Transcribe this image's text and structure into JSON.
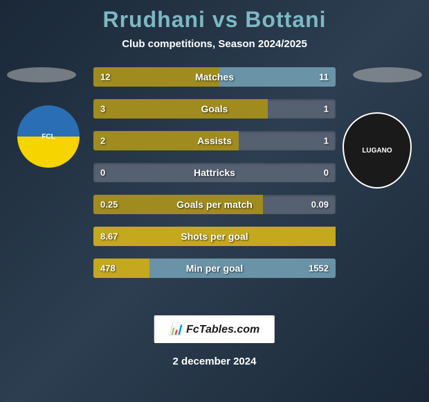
{
  "header": {
    "title": "Rrudhani vs Bottani",
    "subtitle": "Club competitions, Season 2024/2025"
  },
  "colors": {
    "title_color": "#7eb8c4",
    "text_color": "#ffffff",
    "bar_bg": "#556070",
    "fill_olive": "#a08c1e",
    "fill_yellow": "#c4a81e",
    "fill_lightblue": "#6b93a8"
  },
  "teams": {
    "left": {
      "name": "FCL",
      "badge_label": "FCL"
    },
    "right": {
      "name": "FC Lugano",
      "badge_label": "LUGANO"
    }
  },
  "stats": [
    {
      "label": "Matches",
      "left_value": "12",
      "right_value": "11",
      "left_pct": 52,
      "right_pct": 48,
      "left_color": "#a08c1e",
      "right_color": "#6b93a8"
    },
    {
      "label": "Goals",
      "left_value": "3",
      "right_value": "1",
      "left_pct": 72,
      "right_pct": 0,
      "left_color": "#a08c1e",
      "right_color": "#556070"
    },
    {
      "label": "Assists",
      "left_value": "2",
      "right_value": "1",
      "left_pct": 60,
      "right_pct": 0,
      "left_color": "#a08c1e",
      "right_color": "#556070"
    },
    {
      "label": "Hattricks",
      "left_value": "0",
      "right_value": "0",
      "left_pct": 0,
      "right_pct": 0,
      "left_color": "#556070",
      "right_color": "#556070"
    },
    {
      "label": "Goals per match",
      "left_value": "0.25",
      "right_value": "0.09",
      "left_pct": 70,
      "right_pct": 0,
      "left_color": "#a08c1e",
      "right_color": "#556070"
    },
    {
      "label": "Shots per goal",
      "left_value": "8.67",
      "right_value": "",
      "left_pct": 100,
      "right_pct": 0,
      "left_color": "#c4a81e",
      "right_color": "#556070"
    },
    {
      "label": "Min per goal",
      "left_value": "478",
      "right_value": "1552",
      "left_pct": 23,
      "right_pct": 77,
      "left_color": "#c4a81e",
      "right_color": "#6b93a8"
    }
  ],
  "footer": {
    "logo_text": "📊 FcTables.com",
    "date": "2 december 2024"
  }
}
